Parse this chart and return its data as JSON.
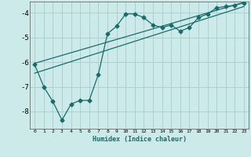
{
  "xlabel": "Humidex (Indice chaleur)",
  "bg_color": "#cceaea",
  "grid_color": "#aacccc",
  "line_color": "#1a6b6b",
  "xlim": [
    -0.5,
    23.5
  ],
  "ylim": [
    -8.7,
    -3.55
  ],
  "yticks": [
    -8,
    -7,
    -6,
    -5,
    -4
  ],
  "xticks": [
    0,
    1,
    2,
    3,
    4,
    5,
    6,
    7,
    8,
    9,
    10,
    11,
    12,
    13,
    14,
    15,
    16,
    17,
    18,
    19,
    20,
    21,
    22,
    23
  ],
  "main_x": [
    0,
    1,
    2,
    3,
    4,
    5,
    6,
    7,
    8,
    9,
    10,
    11,
    12,
    13,
    14,
    15,
    16,
    17,
    18,
    19,
    20,
    21,
    22,
    23
  ],
  "main_y": [
    -6.1,
    -7.0,
    -7.6,
    -8.35,
    -7.7,
    -7.55,
    -7.55,
    -6.5,
    -4.85,
    -4.55,
    -4.05,
    -4.05,
    -4.2,
    -4.5,
    -4.6,
    -4.5,
    -4.75,
    -4.6,
    -4.2,
    -4.05,
    -3.8,
    -3.75,
    -3.7,
    -3.6
  ],
  "line1_x": [
    0,
    23
  ],
  "line1_y": [
    -6.05,
    -3.58
  ],
  "line2_x": [
    0,
    23
  ],
  "line2_y": [
    -6.45,
    -3.75
  ],
  "markersize": 2.5
}
